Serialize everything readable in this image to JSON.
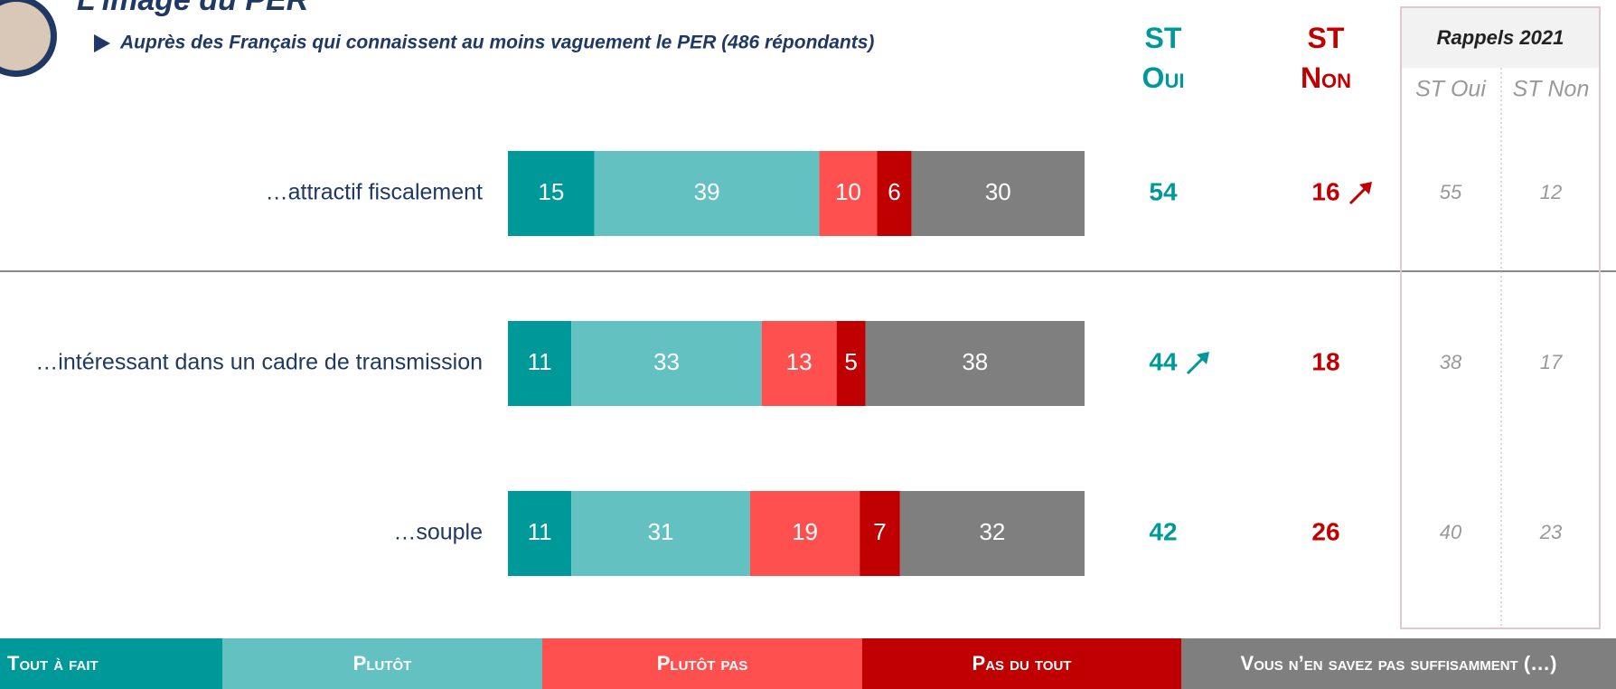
{
  "header": {
    "title": "L’image du PER",
    "subtitle": "Auprès des Français qui connaissent au moins vaguement le PER (486 répondants)"
  },
  "chart_data": {
    "type": "bar",
    "orientation": "horizontal",
    "stacked": true,
    "categories": [
      "…attractif fiscalement",
      "…intéressant dans un cadre de transmission",
      "…souple"
    ],
    "series": [
      {
        "name": "Tout à fait",
        "color": "#009999",
        "values": [
          15,
          11,
          11
        ]
      },
      {
        "name": "Plutôt",
        "color": "#63c1c1",
        "values": [
          39,
          33,
          31
        ]
      },
      {
        "name": "Plutôt pas",
        "color": "#ff5050",
        "values": [
          10,
          13,
          19
        ]
      },
      {
        "name": "Pas du tout",
        "color": "#c00000",
        "values": [
          6,
          5,
          7
        ]
      },
      {
        "name": "Vous n’en savez pas suffisamment (…)",
        "color": "#7f7f7f",
        "values": [
          30,
          38,
          32
        ]
      }
    ]
  },
  "summary": {
    "st_oui_label": "ST Oui",
    "st_non_label": "ST Non",
    "st_oui": [
      54,
      44,
      42
    ],
    "st_non": [
      16,
      18,
      26
    ],
    "st_oui_trend_up": [
      false,
      true,
      false
    ],
    "st_non_trend_up": [
      true,
      false,
      false
    ],
    "st_oui_color": "#009999",
    "st_non_color": "#c00000"
  },
  "rappels": {
    "title": "Rappels 2021",
    "columns": [
      "ST Oui",
      "ST Non"
    ],
    "st_oui": [
      55,
      38,
      40
    ],
    "st_non": [
      12,
      17,
      23
    ]
  }
}
